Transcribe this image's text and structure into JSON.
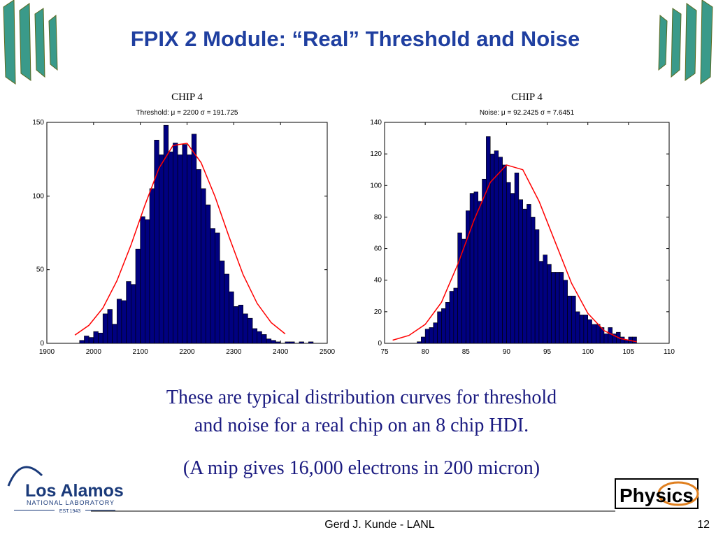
{
  "slide": {
    "title": "FPIX 2 Module: “Real” Threshold and Noise",
    "body": [
      "These are typical distribution curves for threshold",
      "and noise for a real chip on an 8 chip HDI.",
      "(A mip gives 16,000 electrons in 200 micron)"
    ],
    "footer": "Gerd J. Kunde - LANL",
    "page": "12",
    "logo": {
      "name": "Los Alamos",
      "sub": "NATIONAL LABORATORY",
      "est": "EST.1943"
    },
    "badge": "Physics"
  },
  "chart_data": [
    {
      "type": "histogram",
      "heading": "CHIP 4",
      "title": "Threshold: μ = 2200 σ = 191.725",
      "color": "#000080",
      "bins": [
        1970,
        1980,
        1990,
        2000,
        2010,
        2020,
        2030,
        2040,
        2050,
        2060,
        2070,
        2080,
        2090,
        2100,
        2110,
        2120,
        2130,
        2140,
        2150,
        2160,
        2170,
        2180,
        2190,
        2200,
        2210,
        2220,
        2230,
        2240,
        2250,
        2260,
        2270,
        2280,
        2290,
        2300,
        2310,
        2320,
        2330,
        2340,
        2350,
        2360,
        2370,
        2380,
        2390,
        2400,
        2410,
        2420,
        2430,
        2440,
        2450,
        2460,
        2470
      ],
      "counts": [
        2,
        5,
        4,
        8,
        7,
        20,
        23,
        13,
        30,
        29,
        42,
        40,
        64,
        86,
        84,
        105,
        138,
        128,
        148,
        130,
        136,
        128,
        135,
        128,
        142,
        118,
        105,
        94,
        78,
        75,
        56,
        47,
        35,
        25,
        26,
        20,
        17,
        10,
        8,
        6,
        3,
        2,
        1,
        0,
        1,
        1,
        0,
        1,
        0,
        1
      ],
      "fit": {
        "color": "#ff0000",
        "x": [
          1960,
          1990,
          2020,
          2050,
          2080,
          2110,
          2140,
          2170,
          2200,
          2230,
          2260,
          2290,
          2320,
          2350,
          2380,
          2410
        ],
        "values": [
          5.6,
          12.2,
          24,
          42.5,
          66.7,
          93.9,
          118.9,
          134.3,
          135.8,
          122.7,
          99.5,
          72.2,
          46.6,
          27.1,
          14.1,
          6.4
        ]
      },
      "xlim": [
        1900,
        2500
      ],
      "xticks": [
        1900,
        2000,
        2100,
        2200,
        2300,
        2400,
        2500
      ],
      "ylim": [
        0,
        150
      ],
      "yticks": [
        0,
        50,
        100,
        150
      ]
    },
    {
      "type": "histogram",
      "heading": "CHIP 4",
      "title": "Noise: μ = 92.2425 σ = 7.6451",
      "color": "#000080",
      "bins": [
        79,
        79.5,
        80,
        80.5,
        81,
        81.5,
        82,
        82.5,
        83,
        83.5,
        84,
        84.5,
        85,
        85.5,
        86,
        86.5,
        87,
        87.5,
        88,
        88.5,
        89,
        89.5,
        90,
        90.5,
        91,
        91.5,
        92,
        92.5,
        93,
        93.5,
        94,
        94.5,
        95,
        95.5,
        96,
        96.5,
        97,
        97.5,
        98,
        98.5,
        99,
        99.5,
        100,
        100.5,
        101,
        101.5,
        102,
        102.5,
        103,
        103.5,
        104,
        104.5,
        105,
        105.5,
        106
      ],
      "counts": [
        1,
        4,
        9,
        10,
        13,
        20,
        22,
        26,
        33,
        35,
        70,
        66,
        84,
        95,
        96,
        90,
        104,
        131,
        120,
        122,
        118,
        113,
        102,
        95,
        108,
        91,
        85,
        88,
        80,
        72,
        52,
        56,
        50,
        45,
        45,
        45,
        40,
        30,
        30,
        20,
        18,
        18,
        15,
        12,
        12,
        10,
        6,
        10,
        6,
        7,
        4,
        2,
        4,
        4
      ],
      "fit": {
        "color": "#ff0000",
        "x": [
          76,
          78,
          80,
          82,
          84,
          86,
          88,
          90,
          92,
          94,
          96,
          98,
          100,
          102,
          104,
          106
        ],
        "values": [
          2,
          5,
          12,
          26,
          50,
          78,
          102,
          113,
          110,
          90,
          64,
          38,
          19,
          8,
          3,
          1
        ]
      },
      "xlim": [
        75,
        110
      ],
      "xticks": [
        75,
        80,
        85,
        90,
        95,
        100,
        105,
        110
      ],
      "ylim": [
        0,
        140
      ],
      "yticks": [
        0,
        20,
        40,
        60,
        80,
        100,
        120,
        140
      ]
    }
  ]
}
